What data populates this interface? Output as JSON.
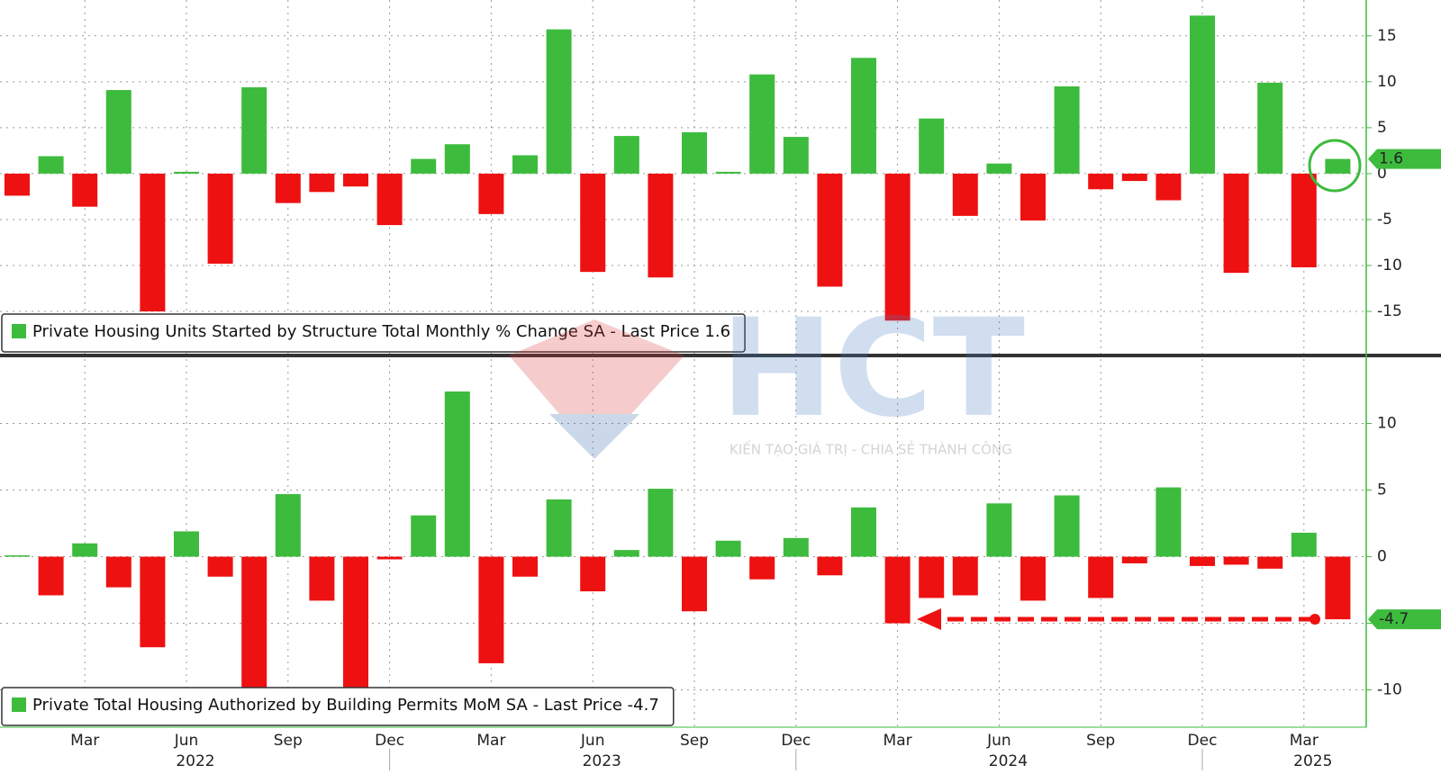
{
  "watermark": {
    "text": "HCT",
    "tagline": "KIẾN TẠO GIÁ TRỊ - CHIA SẺ THÀNH CÔNG"
  },
  "chart_data": [
    {
      "type": "bar",
      "legend": "Private Housing Units Started by Structure Total Monthly % Change SA - Last Price 1.6",
      "legend_color": "#3dbb3d",
      "up_color": "#3dbb3d",
      "down_color": "#ee1111",
      "values": [
        -2.4,
        1.9,
        -3.6,
        9.1,
        -15,
        0.2,
        -9.8,
        9.4,
        -3.2,
        -2,
        -1.4,
        -5.6,
        1.6,
        3.2,
        -4.4,
        2.0,
        15.7,
        -10.7,
        4.1,
        -11.3,
        4.5,
        0.2,
        10.8,
        4.0,
        -12.3,
        12.6,
        -16,
        6.0,
        -4.6,
        1.1,
        -5.1,
        9.5,
        -1.7,
        -0.8,
        -2.9,
        17.2,
        -10.8,
        9.9,
        -10.2,
        1.6
      ],
      "ylim": [
        -19.6,
        18.9
      ],
      "yticks": [
        -15,
        -10,
        -5,
        0,
        5,
        10,
        15
      ],
      "grid": true
    },
    {
      "type": "bar",
      "legend": "Private Total Housing Authorized by Building Permits MoM SA - Last Price -4.7",
      "legend_color": "#3dbb3d",
      "up_color": "#3dbb3d",
      "down_color": "#ee1111",
      "values": [
        0.1,
        -2.9,
        1.0,
        -2.3,
        -6.8,
        1.9,
        -1.5,
        -10,
        4.7,
        -3.3,
        -10,
        -0.2,
        3.1,
        12.4,
        -8.0,
        -1.5,
        4.3,
        -2.6,
        0.5,
        5.1,
        -4.1,
        1.2,
        -1.7,
        1.4,
        -1.4,
        3.7,
        -5.0,
        -3.1,
        -2.9,
        4.0,
        -3.3,
        4.6,
        -3.1,
        -0.5,
        5.2,
        -0.7,
        -0.6,
        -0.9,
        1.8,
        -4.7
      ],
      "ylim": [
        -12.8,
        14.9
      ],
      "yticks": [
        -10,
        -5,
        0,
        5,
        10
      ],
      "grid": true
    }
  ],
  "x_axis": {
    "categories": [
      null,
      null,
      "Mar",
      null,
      null,
      "Jun",
      null,
      null,
      "Sep",
      null,
      null,
      "Dec",
      null,
      null,
      "Mar",
      null,
      null,
      "Jun",
      null,
      null,
      "Sep",
      null,
      null,
      "Dec",
      null,
      null,
      "Mar",
      null,
      null,
      "Jun",
      null,
      null,
      "Sep",
      null,
      null,
      "Dec",
      null,
      null,
      "Mar",
      null
    ],
    "years": [
      null,
      null,
      null,
      null,
      null,
      "2022",
      null,
      null,
      null,
      null,
      null,
      null,
      null,
      null,
      null,
      null,
      null,
      "2023",
      null,
      null,
      null,
      null,
      null,
      null,
      null,
      null,
      null,
      null,
      null,
      "2024",
      null,
      null,
      null,
      null,
      null,
      null,
      null,
      null,
      "2025",
      null
    ]
  }
}
